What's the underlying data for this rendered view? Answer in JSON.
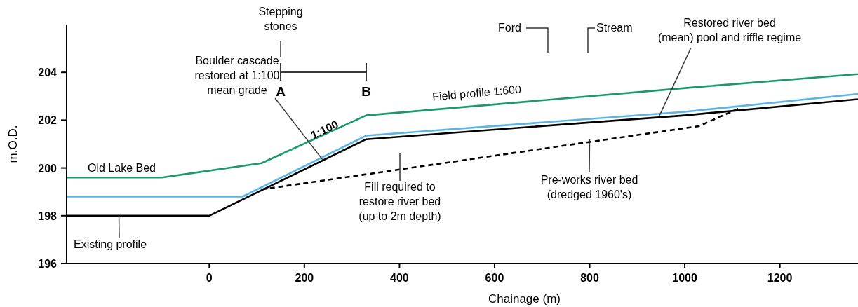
{
  "chart_data": {
    "type": "line",
    "xlabel": "Chainage (m)",
    "ylabel": "m.O.D.",
    "xlim": [
      -300,
      1537
    ],
    "ylim": [
      196,
      206
    ],
    "xticks": [
      0,
      200,
      400,
      600,
      800,
      1000,
      1200
    ],
    "yticks": [
      196,
      198,
      200,
      202,
      204
    ],
    "grid": false,
    "series": [
      {
        "color": "#5ab4e6",
        "x": [
          -300,
          70,
          330,
          1000,
          1537
        ],
        "values": [
          198.8,
          198.8,
          201.35,
          202.35,
          203.45
        ]
      },
      {
        "color": "#1a9a6c",
        "x": [
          -300,
          -100,
          110,
          330,
          1035,
          1537
        ],
        "values": [
          199.6,
          199.6,
          200.2,
          202.2,
          203.4,
          204.2
        ]
      },
      {
        "color": "#000000",
        "x": [
          -300,
          0,
          330,
          1000,
          1537
        ],
        "values": [
          198,
          198,
          201.2,
          202.2,
          203.2
        ]
      },
      {
        "color": "#000000",
        "line_style": "dashed",
        "x": [
          110,
          1030,
          1115
        ],
        "values": [
          199.1,
          201.75,
          202.5
        ]
      }
    ],
    "annotations": [
      "Stepping\nstones",
      "A",
      "B",
      "Ford",
      "Stream",
      {
        "text": "Boulder cascade\nrestored at 1:100\nmean grade",
        "x": 240,
        "y": 200.3
      },
      "1:100",
      "Field profile 1:600",
      {
        "text": "Restored river bed\n(mean) pool and riffle regime",
        "x": 947,
        "y": 202.2
      },
      "Old Lake Bed",
      "Fill required to\nrestore river bed\n(up to 2m depth)",
      {
        "text": "Pre-works river bed\n(dredged 1960's)",
        "x": 800,
        "y": 201.2
      },
      {
        "text": "Existing profile",
        "x": -190,
        "y": 198
      }
    ]
  }
}
